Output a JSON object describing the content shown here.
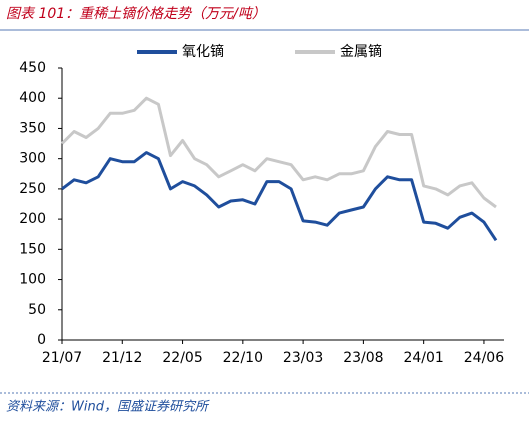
{
  "chart_data": {
    "type": "line",
    "title": "图表 101：重稀土镝价格走势（万元/吨）",
    "source": "资料来源：Wind，国盛证券研究所",
    "x": [
      "21/07",
      "21/08",
      "21/09",
      "21/10",
      "21/11",
      "21/12",
      "22/01",
      "22/02",
      "22/03",
      "22/04",
      "22/05",
      "22/06",
      "22/07",
      "22/08",
      "22/09",
      "22/10",
      "22/11",
      "22/12",
      "23/01",
      "23/02",
      "23/03",
      "23/04",
      "23/05",
      "23/06",
      "23/07",
      "23/08",
      "23/09",
      "23/10",
      "23/11",
      "23/12",
      "24/01",
      "24/02",
      "24/03",
      "24/04",
      "24/05",
      "24/06",
      "24/07"
    ],
    "xticks": [
      "21/07",
      "21/12",
      "22/05",
      "22/10",
      "23/03",
      "23/08",
      "24/01",
      "24/06"
    ],
    "series": [
      {
        "name": "氧化镝",
        "color": "#1f4e9c",
        "values": [
          250,
          265,
          260,
          270,
          300,
          295,
          295,
          310,
          300,
          250,
          262,
          255,
          240,
          220,
          230,
          232,
          225,
          262,
          262,
          250,
          197,
          195,
          190,
          210,
          215,
          220,
          250,
          270,
          265,
          265,
          195,
          193,
          185,
          203,
          210,
          195,
          165
        ]
      },
      {
        "name": "金属镝",
        "color": "#c8c8c8",
        "values": [
          325,
          345,
          335,
          350,
          375,
          375,
          380,
          400,
          390,
          305,
          330,
          300,
          290,
          270,
          280,
          290,
          280,
          300,
          295,
          290,
          265,
          270,
          265,
          275,
          275,
          280,
          320,
          345,
          340,
          340,
          255,
          250,
          240,
          255,
          260,
          235,
          220
        ]
      }
    ],
    "ylim": [
      0,
      450
    ],
    "yticks": [
      0,
      50,
      100,
      150,
      200,
      250,
      300,
      350,
      400,
      450
    ],
    "legend": "top"
  }
}
